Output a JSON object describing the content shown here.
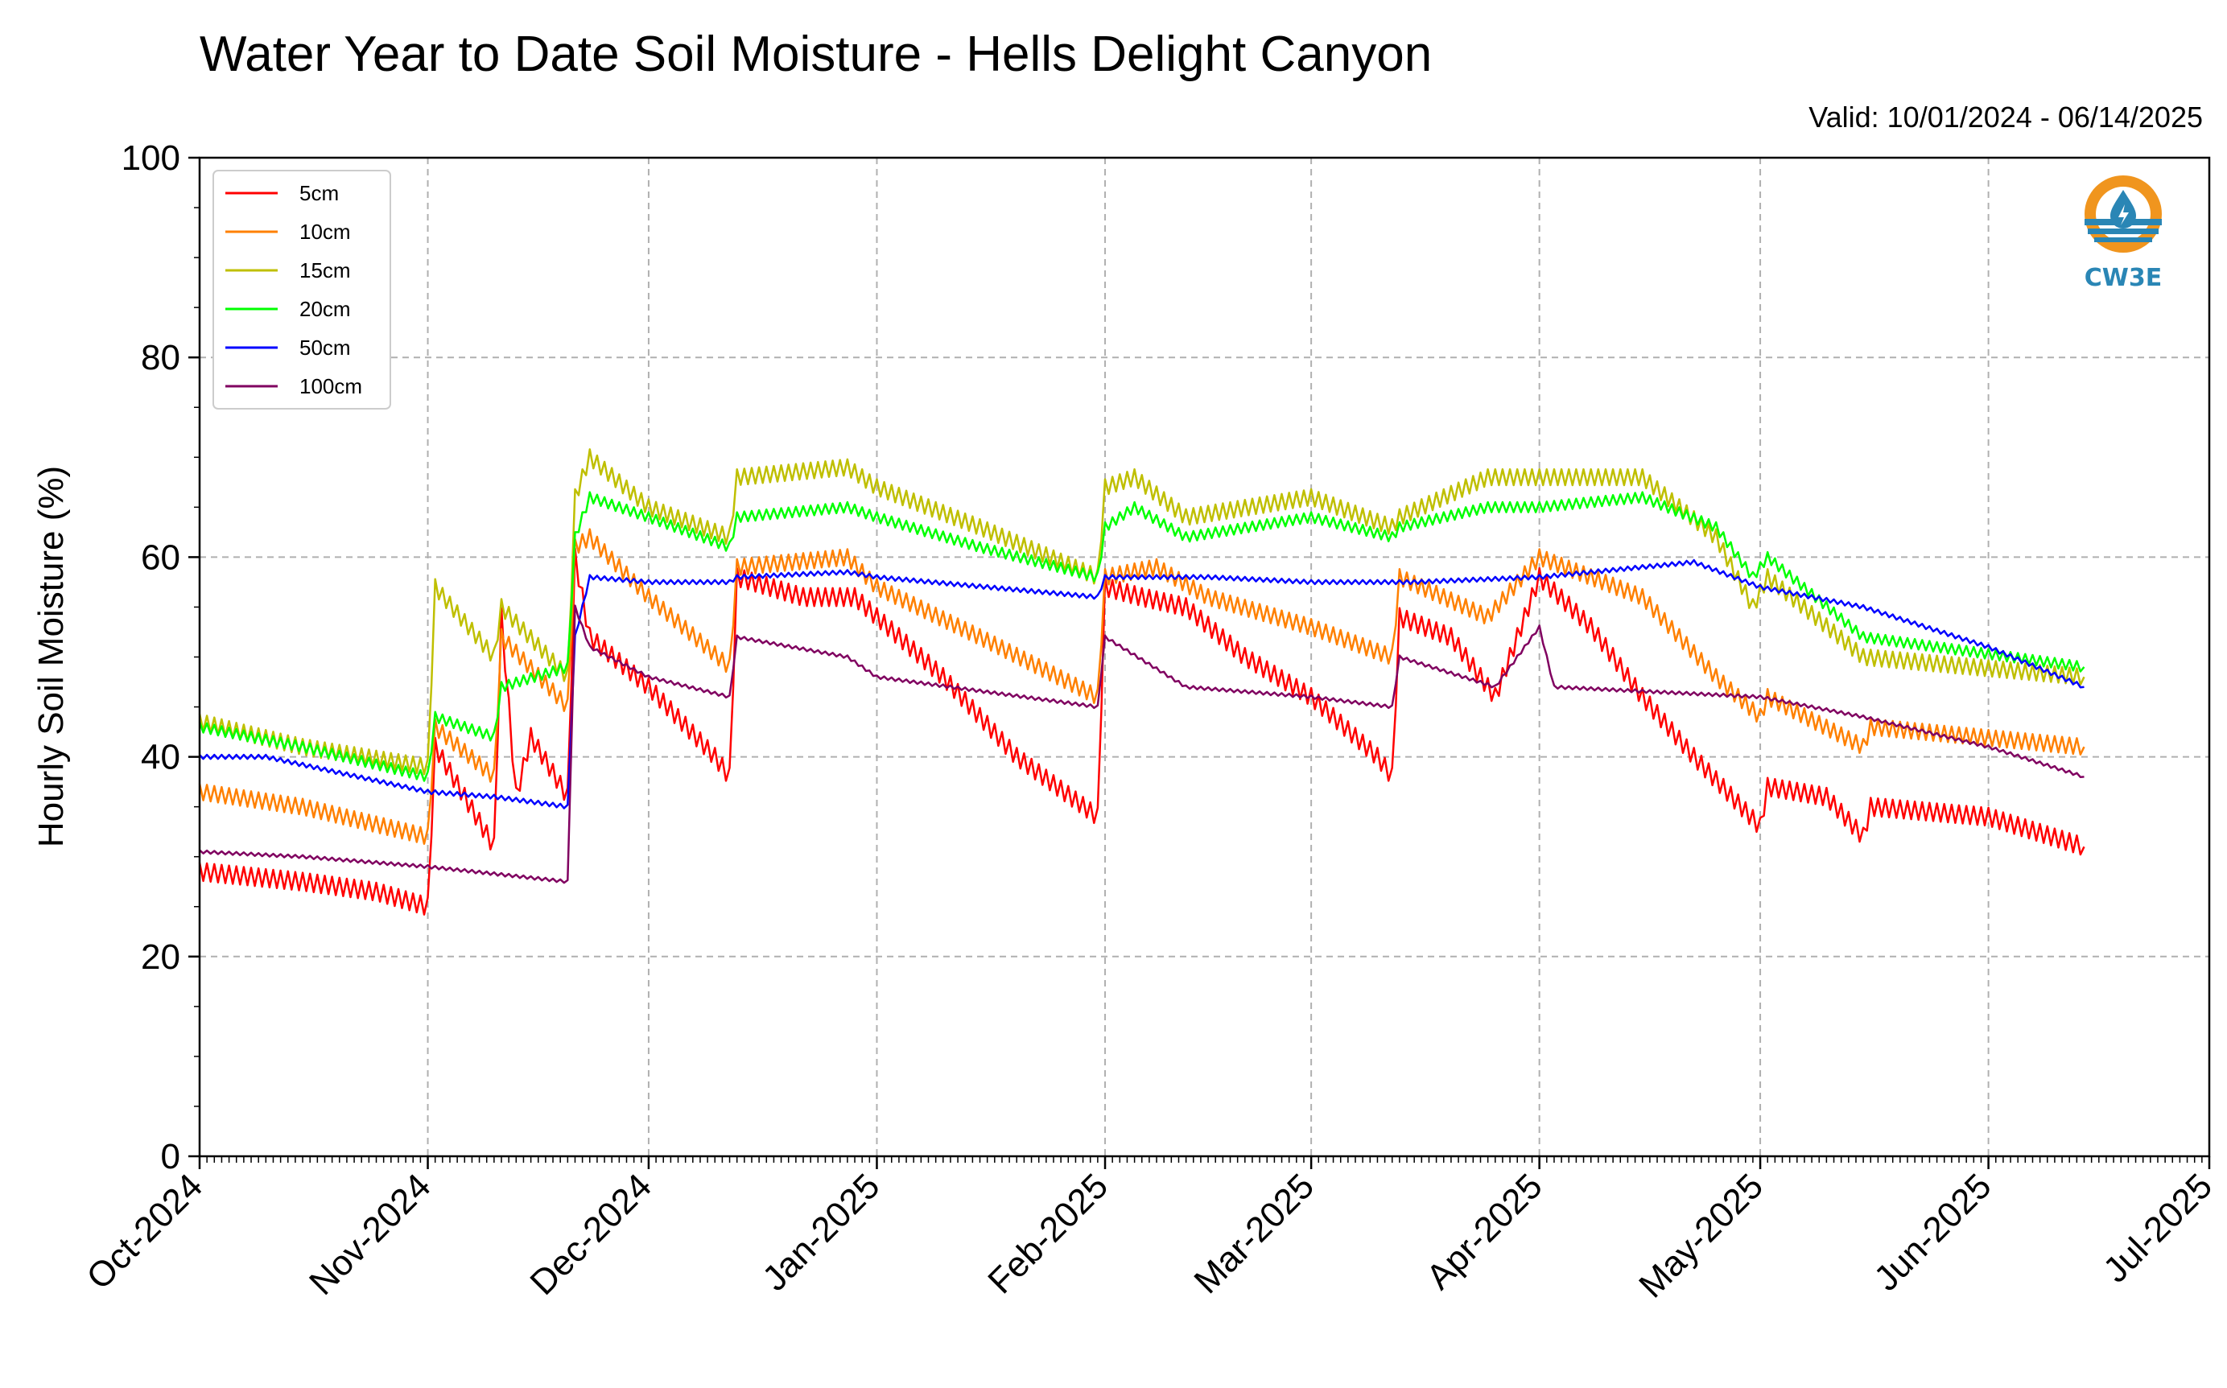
{
  "header": {
    "title": "Water Year to Date Soil Moisture - Hells Delight Canyon",
    "valid": "Valid: 10/01/2024 - 06/14/2025"
  },
  "logo": {
    "text": "CW3E",
    "icon": "cw3e-water-drop-logo"
  },
  "colors": {
    "5cm": "#ff0000",
    "10cm": "#ff8000",
    "15cm": "#bfbf00",
    "20cm": "#00ff00",
    "50cm": "#0000ff",
    "100cm": "#800060"
  },
  "chart_data": {
    "type": "line",
    "title": "Water Year to Date Soil Moisture - Hells Delight Canyon",
    "xlabel": "",
    "ylabel": "Hourly Soil Moisture (%)",
    "ylim": [
      0,
      100
    ],
    "xlim": [
      "2024-10-01",
      "2025-07-01"
    ],
    "x_tick_labels": [
      "Oct-2024",
      "Nov-2024",
      "Dec-2024",
      "Jan-2025",
      "Feb-2025",
      "Mar-2025",
      "Apr-2025",
      "May-2025",
      "Jun-2025",
      "Jul-2025"
    ],
    "y_ticks": [
      0,
      20,
      40,
      60,
      80,
      100
    ],
    "grid": true,
    "legend_position": "top-left",
    "series": [
      {
        "name": "5cm",
        "color": "#ff0000",
        "points": [
          [
            "2024-10-01",
            28.5
          ],
          [
            "2024-10-15",
            27.5
          ],
          [
            "2024-10-25",
            26.5
          ],
          [
            "2024-11-01",
            25
          ],
          [
            "2024-11-02",
            41
          ],
          [
            "2024-11-10",
            31
          ],
          [
            "2024-11-11",
            54
          ],
          [
            "2024-11-13",
            36
          ],
          [
            "2024-11-15",
            42
          ],
          [
            "2024-11-20",
            36
          ],
          [
            "2024-11-21",
            60
          ],
          [
            "2024-11-23",
            52
          ],
          [
            "2024-12-01",
            47
          ],
          [
            "2024-12-10",
            40
          ],
          [
            "2024-12-12",
            38
          ],
          [
            "2024-12-13",
            58
          ],
          [
            "2024-12-22",
            56
          ],
          [
            "2024-12-29",
            56
          ],
          [
            "2025-01-01",
            54
          ],
          [
            "2025-01-10",
            48
          ],
          [
            "2025-01-20",
            40
          ],
          [
            "2025-01-31",
            34
          ],
          [
            "2025-02-01",
            57
          ],
          [
            "2025-02-06",
            56
          ],
          [
            "2025-02-12",
            55
          ],
          [
            "2025-02-20",
            50
          ],
          [
            "2025-03-01",
            46
          ],
          [
            "2025-03-10",
            40
          ],
          [
            "2025-03-12",
            38
          ],
          [
            "2025-03-13",
            54
          ],
          [
            "2025-03-20",
            52
          ],
          [
            "2025-03-26",
            46
          ],
          [
            "2025-04-01",
            58
          ],
          [
            "2025-04-08",
            53
          ],
          [
            "2025-04-15",
            46
          ],
          [
            "2025-04-22",
            40
          ],
          [
            "2025-05-01",
            33
          ],
          [
            "2025-05-02",
            37
          ],
          [
            "2025-05-10",
            36
          ],
          [
            "2025-05-15",
            32
          ],
          [
            "2025-05-16",
            35
          ],
          [
            "2025-06-01",
            34
          ],
          [
            "2025-06-14",
            31
          ]
        ]
      },
      {
        "name": "10cm",
        "color": "#ff8000",
        "points": [
          [
            "2024-10-01",
            36.5
          ],
          [
            "2024-10-15",
            35
          ],
          [
            "2024-11-01",
            32
          ],
          [
            "2024-11-02",
            43
          ],
          [
            "2024-11-10",
            38
          ],
          [
            "2024-11-11",
            52
          ],
          [
            "2024-11-20",
            45
          ],
          [
            "2024-11-21",
            61
          ],
          [
            "2024-11-23",
            62
          ],
          [
            "2024-12-01",
            56
          ],
          [
            "2024-12-12",
            49
          ],
          [
            "2024-12-13",
            59
          ],
          [
            "2024-12-28",
            60
          ],
          [
            "2025-01-01",
            57
          ],
          [
            "2025-01-15",
            52
          ],
          [
            "2025-01-31",
            46
          ],
          [
            "2025-02-01",
            58
          ],
          [
            "2025-02-08",
            59
          ],
          [
            "2025-02-15",
            56
          ],
          [
            "2025-03-01",
            53
          ],
          [
            "2025-03-12",
            50
          ],
          [
            "2025-03-13",
            58
          ],
          [
            "2025-03-25",
            54
          ],
          [
            "2025-04-01",
            60
          ],
          [
            "2025-04-15",
            56
          ],
          [
            "2025-04-25",
            48
          ],
          [
            "2025-05-01",
            44
          ],
          [
            "2025-05-02",
            46
          ],
          [
            "2025-05-15",
            41
          ],
          [
            "2025-05-16",
            43
          ],
          [
            "2025-06-14",
            41
          ]
        ]
      },
      {
        "name": "15cm",
        "color": "#bfbf00",
        "points": [
          [
            "2024-10-01",
            43.5
          ],
          [
            "2024-10-15",
            41
          ],
          [
            "2024-11-01",
            39
          ],
          [
            "2024-11-02",
            57
          ],
          [
            "2024-11-10",
            50
          ],
          [
            "2024-11-11",
            55
          ],
          [
            "2024-11-20",
            48
          ],
          [
            "2024-11-21",
            66
          ],
          [
            "2024-11-23",
            70
          ],
          [
            "2024-12-01",
            65
          ],
          [
            "2024-12-12",
            62
          ],
          [
            "2024-12-13",
            68
          ],
          [
            "2024-12-28",
            69
          ],
          [
            "2025-01-01",
            67
          ],
          [
            "2025-01-15",
            63
          ],
          [
            "2025-01-31",
            58
          ],
          [
            "2025-02-01",
            67
          ],
          [
            "2025-02-05",
            68
          ],
          [
            "2025-02-12",
            64
          ],
          [
            "2025-03-01",
            66
          ],
          [
            "2025-03-12",
            63
          ],
          [
            "2025-03-13",
            64
          ],
          [
            "2025-03-25",
            68
          ],
          [
            "2025-04-01",
            68
          ],
          [
            "2025-04-15",
            68
          ],
          [
            "2025-04-25",
            62
          ],
          [
            "2025-04-30",
            55
          ],
          [
            "2025-05-02",
            58
          ],
          [
            "2025-05-15",
            50
          ],
          [
            "2025-06-14",
            48
          ]
        ]
      },
      {
        "name": "20cm",
        "color": "#00ff00",
        "points": [
          [
            "2024-10-01",
            43
          ],
          [
            "2024-10-15",
            41
          ],
          [
            "2024-11-01",
            38
          ],
          [
            "2024-11-02",
            44
          ],
          [
            "2024-11-10",
            42
          ],
          [
            "2024-11-11",
            47
          ],
          [
            "2024-11-20",
            49
          ],
          [
            "2024-11-21",
            62
          ],
          [
            "2024-11-23",
            66
          ],
          [
            "2024-12-01",
            64
          ],
          [
            "2024-12-12",
            61
          ],
          [
            "2024-12-13",
            64
          ],
          [
            "2024-12-28",
            65
          ],
          [
            "2025-01-01",
            64
          ],
          [
            "2025-01-15",
            61
          ],
          [
            "2025-01-31",
            58
          ],
          [
            "2025-02-01",
            63
          ],
          [
            "2025-02-05",
            65
          ],
          [
            "2025-02-12",
            62
          ],
          [
            "2025-03-01",
            64
          ],
          [
            "2025-03-12",
            62
          ],
          [
            "2025-03-13",
            63
          ],
          [
            "2025-03-25",
            65
          ],
          [
            "2025-04-01",
            65
          ],
          [
            "2025-04-15",
            66
          ],
          [
            "2025-04-25",
            63
          ],
          [
            "2025-04-30",
            58
          ],
          [
            "2025-05-02",
            60
          ],
          [
            "2025-05-15",
            52
          ],
          [
            "2025-06-14",
            49
          ]
        ]
      },
      {
        "name": "50cm",
        "color": "#0000ff",
        "points": [
          [
            "2024-10-01",
            40
          ],
          [
            "2024-10-10",
            40
          ],
          [
            "2024-11-01",
            36.5
          ],
          [
            "2024-11-10",
            36
          ],
          [
            "2024-11-20",
            35
          ],
          [
            "2024-11-21",
            52
          ],
          [
            "2024-11-23",
            58
          ],
          [
            "2024-12-01",
            57.5
          ],
          [
            "2024-12-12",
            57.5
          ],
          [
            "2024-12-13",
            58
          ],
          [
            "2024-12-28",
            58.5
          ],
          [
            "2025-01-01",
            58
          ],
          [
            "2025-01-31",
            56
          ],
          [
            "2025-02-01",
            58
          ],
          [
            "2025-02-15",
            58
          ],
          [
            "2025-03-01",
            57.5
          ],
          [
            "2025-03-15",
            57.5
          ],
          [
            "2025-04-01",
            58
          ],
          [
            "2025-04-15",
            59
          ],
          [
            "2025-04-22",
            59.5
          ],
          [
            "2025-05-01",
            57
          ],
          [
            "2025-05-15",
            55
          ],
          [
            "2025-06-01",
            51
          ],
          [
            "2025-06-14",
            47
          ]
        ]
      },
      {
        "name": "100cm",
        "color": "#800060",
        "points": [
          [
            "2024-10-01",
            30.5
          ],
          [
            "2024-10-15",
            30
          ],
          [
            "2024-11-01",
            29
          ],
          [
            "2024-11-20",
            27.5
          ],
          [
            "2024-11-21",
            55
          ],
          [
            "2024-11-23",
            51
          ],
          [
            "2024-12-01",
            48
          ],
          [
            "2024-12-12",
            46
          ],
          [
            "2024-12-13",
            52
          ],
          [
            "2024-12-28",
            50
          ],
          [
            "2025-01-01",
            48
          ],
          [
            "2025-01-31",
            45
          ],
          [
            "2025-02-01",
            52
          ],
          [
            "2025-02-12",
            47
          ],
          [
            "2025-03-01",
            46
          ],
          [
            "2025-03-12",
            45
          ],
          [
            "2025-03-13",
            50
          ],
          [
            "2025-03-26",
            47
          ],
          [
            "2025-04-01",
            53
          ],
          [
            "2025-04-03",
            47
          ],
          [
            "2025-05-01",
            46
          ],
          [
            "2025-05-15",
            44
          ],
          [
            "2025-06-01",
            41
          ],
          [
            "2025-06-14",
            38
          ]
        ]
      }
    ]
  }
}
